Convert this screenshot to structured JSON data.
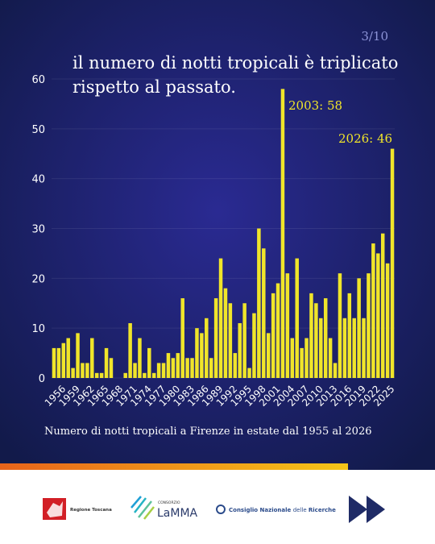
{
  "page_number": "3/10",
  "chart_data": {
    "type": "bar",
    "title_lines": [
      "il numero di notti tropicali è triplicato",
      "rispetto al passato."
    ],
    "caption": "Numero di notti tropicali a Firenze in estate dal 1955 al 2026",
    "annotations": [
      "2003: 58",
      "2026: 46"
    ],
    "categories": [
      null,
      "1956",
      null,
      null,
      "1959",
      null,
      null,
      "1962",
      null,
      null,
      "1965",
      null,
      null,
      "1968",
      null,
      null,
      "1971",
      null,
      null,
      "1974",
      null,
      null,
      "1977",
      null,
      null,
      "1980",
      null,
      null,
      "1983",
      null,
      null,
      "1986",
      null,
      null,
      "1989",
      null,
      null,
      "1992",
      null,
      null,
      "1995",
      null,
      null,
      "1998",
      null,
      null,
      "2001",
      null,
      null,
      "2004",
      null,
      null,
      "2007",
      null,
      null,
      "2010",
      null,
      null,
      "2013",
      null,
      null,
      "2016",
      null,
      null,
      "2019",
      null,
      null,
      "2022",
      null,
      null,
      "2025",
      null
    ],
    "values": [
      6,
      6,
      7,
      8,
      2,
      9,
      3,
      3,
      8,
      1,
      1,
      6,
      4,
      0,
      0,
      1,
      11,
      3,
      8,
      1,
      6,
      1,
      3,
      3,
      5,
      4,
      5,
      16,
      4,
      4,
      10,
      9,
      12,
      4,
      16,
      24,
      18,
      15,
      5,
      11,
      15,
      2,
      13,
      30,
      26,
      9,
      17,
      19,
      58,
      21,
      8,
      24,
      6,
      8,
      17,
      15,
      12,
      16,
      8,
      3,
      21,
      12,
      17,
      12,
      20,
      12,
      21,
      27,
      25,
      29,
      23,
      46
    ],
    "color": "#f0e52a",
    "ylim": [
      0,
      60
    ],
    "yticks": [
      0,
      10,
      20,
      30,
      40,
      50,
      60
    ],
    "grid": true
  },
  "footer": {
    "logo1": "Regione Toscana",
    "logo2_top": "CONSORZIO",
    "logo2": "LaMMA",
    "logo3_a": "Consiglio Nazionale ",
    "logo3_b": "delle ",
    "logo3_c": "Ricerche"
  }
}
